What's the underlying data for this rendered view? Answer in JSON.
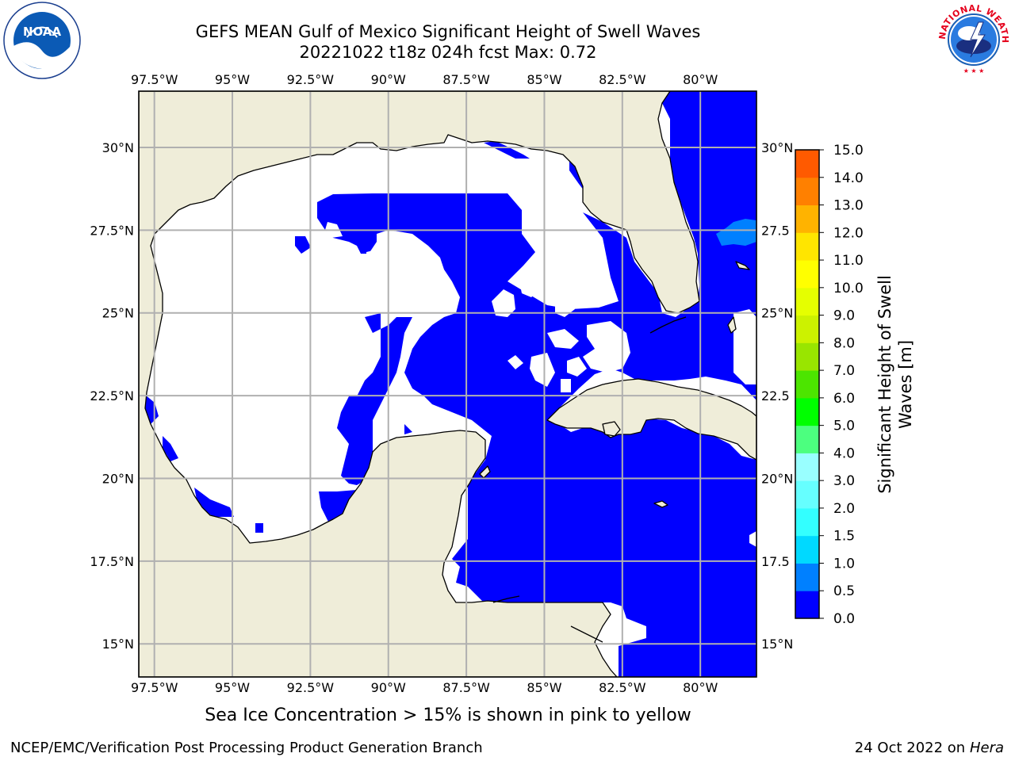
{
  "header": {
    "title_line1": "GEFS MEAN Gulf of Mexico Significant Height of Swell Waves",
    "title_line2": "20221022 t18z 024h fcst   Max: 0.72"
  },
  "logos": {
    "noaa_text": "NOAA",
    "noaa_ring": "NATIONAL OCEANIC AND ATMOSPHERIC ADMINISTRATION · U.S. DEPARTMENT OF COMMERCE",
    "nws_ring": "NATIONAL WEATHER SERVICE"
  },
  "map": {
    "lon_ticks": [
      "97.5°W",
      "95°W",
      "92.5°W",
      "90°W",
      "87.5°W",
      "85°W",
      "82.5°W",
      "80°W"
    ],
    "lat_ticks_left": [
      "30°N",
      "27.5°N",
      "25°N",
      "22.5°N",
      "20°N",
      "17.5°N",
      "15°N"
    ],
    "lat_ticks_right": [
      "30°N",
      "27.5",
      "25°N",
      "22.5",
      "20°N",
      "17.5",
      "15°N"
    ],
    "land_color": "#efedd9",
    "grid_color": "#b0b0b0",
    "domain_lon": [
      -98,
      -78.2
    ],
    "domain_lat": [
      14,
      31.7
    ]
  },
  "colorbar": {
    "title_line1": "Significant Height of Swell",
    "title_line2": "Waves [m]",
    "ticks": [
      "0.0",
      "0.5",
      "1.0",
      "1.5",
      "2.0",
      "3.0",
      "4.0",
      "5.0",
      "6.0",
      "7.0",
      "8.0",
      "9.0",
      "10.0",
      "11.0",
      "12.0",
      "13.0",
      "14.0",
      "15.0"
    ],
    "colors": [
      "#0000ff",
      "#0080ff",
      "#00d9ff",
      "#33ffff",
      "#66ffff",
      "#99ffff",
      "#4cff7f",
      "#00ff00",
      "#4ce500",
      "#99e500",
      "#ccf200",
      "#e5ff00",
      "#ffff00",
      "#ffe500",
      "#ffb300",
      "#ff8000",
      "#ff5a00",
      "#ff2a00",
      "#ff0000"
    ]
  },
  "note": "Sea Ice Concentration > 15% is shown in pink to yellow",
  "footer": {
    "left": "NCEP/EMC/Verification Post Processing Product Generation Branch",
    "date": "24 Oct 2022 on ",
    "host": "Hera"
  }
}
